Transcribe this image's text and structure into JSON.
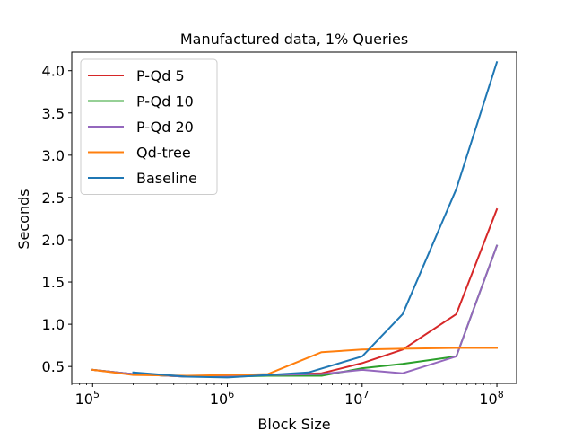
{
  "chart_data": {
    "type": "line",
    "title": "Manufactured data, 1% Queries",
    "xlabel": "Block Size",
    "ylabel": "Seconds",
    "xscale": "log",
    "xlim": [
      70000,
      140000000
    ],
    "ylim": [
      0.3,
      4.22
    ],
    "xticks": [
      {
        "value": 100000,
        "base": "10",
        "exp": "5"
      },
      {
        "value": 1000000,
        "base": "10",
        "exp": "6"
      },
      {
        "value": 10000000,
        "base": "10",
        "exp": "7"
      },
      {
        "value": 100000000,
        "base": "10",
        "exp": "8"
      }
    ],
    "yticks": [
      {
        "value": 0.5,
        "label": "0.5"
      },
      {
        "value": 1.0,
        "label": "1.0"
      },
      {
        "value": 1.5,
        "label": "1.5"
      },
      {
        "value": 2.0,
        "label": "2.0"
      },
      {
        "value": 2.5,
        "label": "2.5"
      },
      {
        "value": 3.0,
        "label": "3.0"
      },
      {
        "value": 3.5,
        "label": "3.5"
      },
      {
        "value": 4.0,
        "label": "4.0"
      }
    ],
    "grid": false,
    "legend_position": "top-left",
    "series": [
      {
        "name": "P-Qd 5",
        "color": "#d62728",
        "x": [
          100000,
          200000,
          500000,
          1000000,
          2000000,
          5000000,
          10000000,
          20000000,
          50000000,
          100000000
        ],
        "y": [
          0.46,
          0.41,
          0.38,
          0.38,
          0.4,
          0.42,
          0.54,
          0.7,
          1.12,
          2.36
        ]
      },
      {
        "name": "P-Qd 10",
        "color": "#2ca02c",
        "x": [
          100000,
          200000,
          500000,
          1000000,
          2000000,
          5000000,
          10000000,
          20000000,
          50000000,
          100000000
        ],
        "y": [
          0.46,
          0.41,
          0.38,
          0.38,
          0.39,
          0.39,
          0.48,
          0.53,
          0.62,
          1.93
        ]
      },
      {
        "name": "P-Qd 20",
        "color": "#9467bd",
        "x": [
          100000,
          200000,
          500000,
          1000000,
          2000000,
          5000000,
          10000000,
          20000000,
          50000000,
          100000000
        ],
        "y": [
          0.46,
          0.41,
          0.38,
          0.38,
          0.4,
          0.41,
          0.46,
          0.42,
          0.62,
          1.93
        ]
      },
      {
        "name": "Qd-tree",
        "color": "#ff7f0e",
        "x": [
          100000,
          200000,
          500000,
          1000000,
          2000000,
          5000000,
          10000000,
          20000000,
          50000000,
          100000000
        ],
        "y": [
          0.46,
          0.4,
          0.39,
          0.4,
          0.41,
          0.67,
          0.7,
          0.71,
          0.72,
          0.72
        ]
      },
      {
        "name": "Baseline",
        "color": "#1f77b4",
        "x": [
          200000,
          500000,
          1000000,
          2000000,
          4000000,
          10000000,
          20000000,
          50000000,
          100000000
        ],
        "y": [
          0.43,
          0.38,
          0.37,
          0.4,
          0.43,
          0.62,
          1.12,
          2.6,
          4.1
        ]
      }
    ]
  }
}
